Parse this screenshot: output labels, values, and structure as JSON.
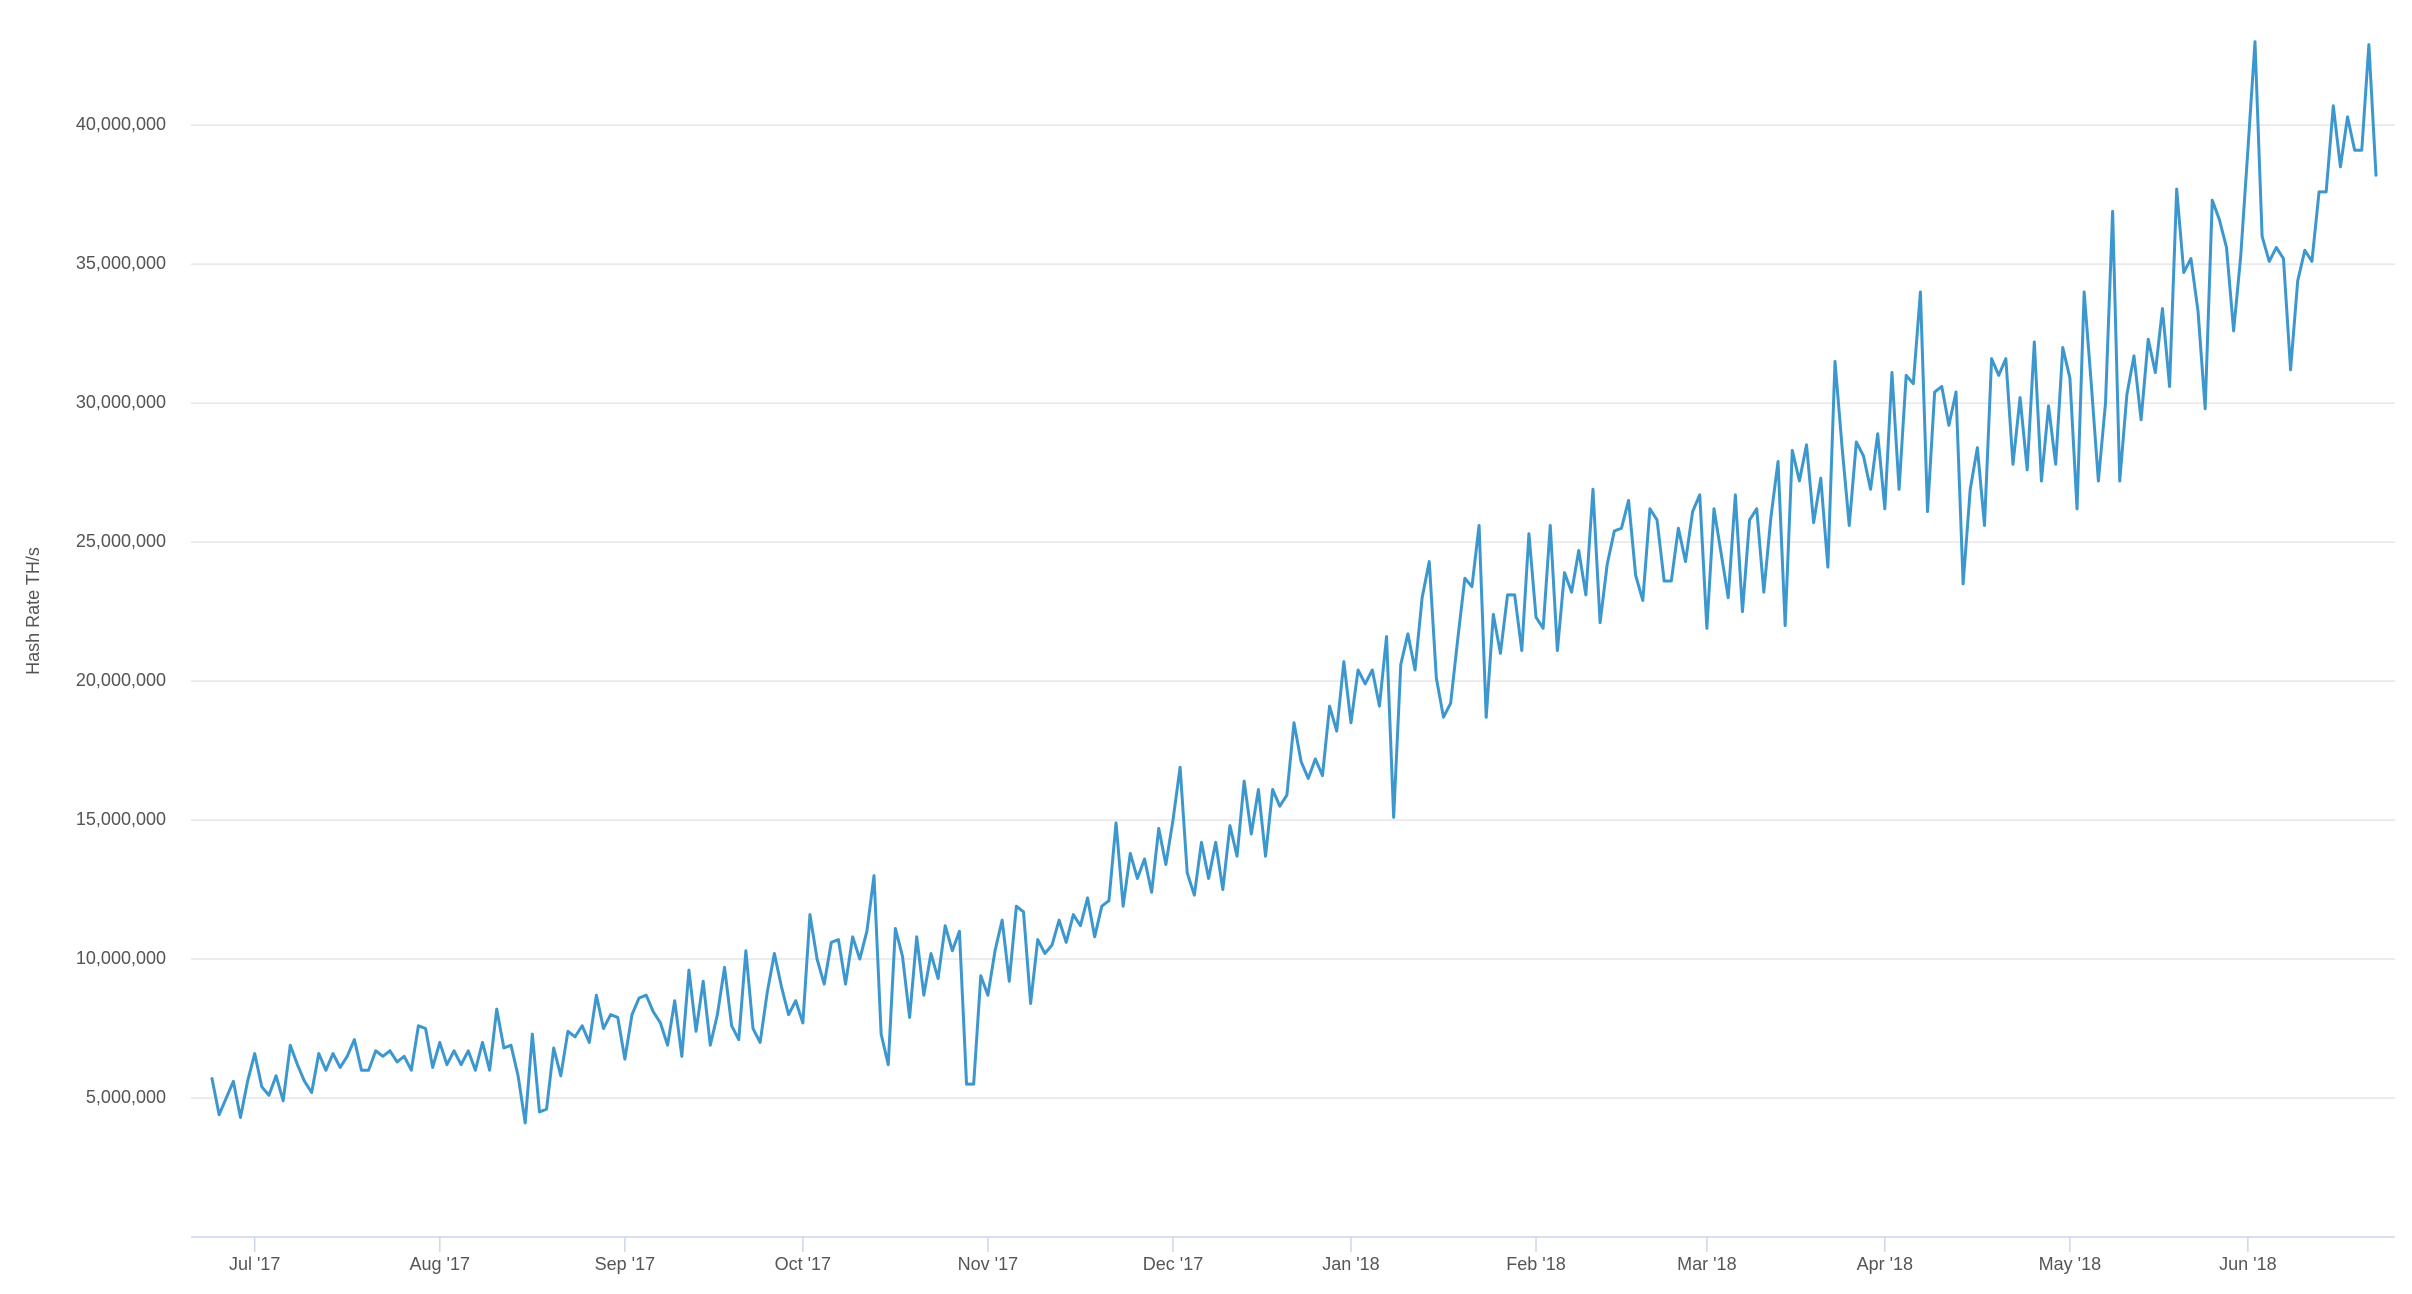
{
  "chart_data": {
    "type": "line",
    "y_label": "Hash Rate TH/s",
    "categories": [
      null,
      null,
      null,
      null,
      null,
      null,
      "Jul '17",
      null,
      null,
      null,
      null,
      null,
      null,
      null,
      null,
      null,
      null,
      null,
      null,
      null,
      null,
      null,
      null,
      null,
      null,
      null,
      null,
      null,
      null,
      null,
      null,
      null,
      "Aug '17",
      null,
      null,
      null,
      null,
      null,
      null,
      null,
      null,
      null,
      null,
      null,
      null,
      null,
      null,
      null,
      null,
      null,
      null,
      null,
      null,
      null,
      null,
      null,
      null,
      null,
      "Sep '17",
      null,
      null,
      null,
      null,
      null,
      null,
      null,
      null,
      null,
      null,
      null,
      null,
      null,
      null,
      null,
      null,
      null,
      null,
      null,
      null,
      null,
      null,
      null,
      null,
      "Oct '17",
      null,
      null,
      null,
      null,
      null,
      null,
      null,
      null,
      null,
      null,
      null,
      null,
      null,
      null,
      null,
      null,
      null,
      null,
      null,
      null,
      null,
      null,
      null,
      null,
      null,
      "Nov '17",
      null,
      null,
      null,
      null,
      null,
      null,
      null,
      null,
      null,
      null,
      null,
      null,
      null,
      null,
      null,
      null,
      null,
      null,
      null,
      null,
      null,
      null,
      null,
      null,
      null,
      "Dec '17",
      null,
      null,
      null,
      null,
      null,
      null,
      null,
      null,
      null,
      null,
      null,
      null,
      null,
      null,
      null,
      null,
      null,
      null,
      null,
      null,
      null,
      null,
      null,
      null,
      "Jan '18",
      null,
      null,
      null,
      null,
      null,
      null,
      null,
      null,
      null,
      null,
      null,
      null,
      null,
      null,
      null,
      null,
      null,
      null,
      null,
      null,
      null,
      null,
      null,
      null,
      null,
      "Feb '18",
      null,
      null,
      null,
      null,
      null,
      null,
      null,
      null,
      null,
      null,
      null,
      null,
      null,
      null,
      null,
      null,
      null,
      null,
      null,
      null,
      null,
      null,
      null,
      "Mar '18",
      null,
      null,
      null,
      null,
      null,
      null,
      null,
      null,
      null,
      null,
      null,
      null,
      null,
      null,
      null,
      null,
      null,
      null,
      null,
      null,
      null,
      null,
      null,
      null,
      "Apr '18",
      null,
      null,
      null,
      null,
      null,
      null,
      null,
      null,
      null,
      null,
      null,
      null,
      null,
      null,
      null,
      null,
      null,
      null,
      null,
      null,
      null,
      null,
      null,
      null,
      null,
      "May '18",
      null,
      null,
      null,
      null,
      null,
      null,
      null,
      null,
      null,
      null,
      null,
      null,
      null,
      null,
      null,
      null,
      null,
      null,
      null,
      null,
      null,
      null,
      null,
      null,
      "Jun '18",
      null,
      null,
      null,
      null,
      null,
      null,
      null,
      null,
      null,
      null,
      null,
      null,
      null,
      null,
      null,
      null,
      null,
      null
    ],
    "values": [
      5700000.0,
      4400000.0,
      5000000.0,
      5600000.0,
      4300000.0,
      5600000.0,
      6600000.0,
      5400000.0,
      5100000.0,
      5800000.0,
      4900000.0,
      6900000.0,
      6200000.0,
      5600000.0,
      5200000.0,
      6600000.0,
      6000000.0,
      6600000.0,
      6100000.0,
      6500000.0,
      7100000.0,
      6000000.0,
      6000000.0,
      6700000.0,
      6500000.0,
      6700000.0,
      6300000.0,
      6500000.0,
      6000000.0,
      7600000.0,
      7500000.0,
      6100000.0,
      7000000.0,
      6200000.0,
      6700000.0,
      6200000.0,
      6700000.0,
      6000000.0,
      7000000.0,
      6000000.0,
      8200000.0,
      6800000.0,
      6900000.0,
      5800000.0,
      4100000.0,
      7300000.0,
      4500000.0,
      4600000.0,
      6800000.0,
      5800000.0,
      7400000.0,
      7200000.0,
      7600000.0,
      7000000.0,
      8700000.0,
      7500000.0,
      8000000.0,
      7900000.0,
      6400000.0,
      8000000.0,
      8600000.0,
      8700000.0,
      8100000.0,
      7700000.0,
      6900000.0,
      8500000.0,
      6500000.0,
      9600000.0,
      7400000.0,
      9200000.0,
      6900000.0,
      8000000.0,
      9700000.0,
      7600000.0,
      7100000.0,
      10300000.0,
      7500000.0,
      7000000.0,
      8800000.0,
      10200000.0,
      9000000.0,
      8000000.0,
      8500000.0,
      7700000.0,
      11600000.0,
      10000000.0,
      9100000.0,
      10600000.0,
      10700000.0,
      9100000.0,
      10800000.0,
      10000000.0,
      11000000.0,
      13000000.0,
      7300000.0,
      6200000.0,
      11100000.0,
      10100000.0,
      7900000.0,
      10800000.0,
      8700000.0,
      10200000.0,
      9300000.0,
      11200000.0,
      10300000.0,
      11000000.0,
      5500000.0,
      5500000.0,
      9400000.0,
      8700000.0,
      10300000.0,
      11400000.0,
      9200000.0,
      11900000.0,
      11700000.0,
      8400000.0,
      10700000.0,
      10200000.0,
      10500000.0,
      11400000.0,
      10600000.0,
      11600000.0,
      11200000.0,
      12200000.0,
      10800000.0,
      11900000.0,
      12100000.0,
      14900000.0,
      11900000.0,
      13800000.0,
      12900000.0,
      13600000.0,
      12400000.0,
      14700000.0,
      13400000.0,
      15000000.0,
      16900000.0,
      13100000.0,
      12300000.0,
      14200000.0,
      12900000.0,
      14200000.0,
      12500000.0,
      14800000.0,
      13700000.0,
      16400000.0,
      14500000.0,
      16100000.0,
      13700000.0,
      16100000.0,
      15500000.0,
      15900000.0,
      18500000.0,
      17100000.0,
      16500000.0,
      17200000.0,
      16600000.0,
      19100000.0,
      18200000.0,
      20700000.0,
      18500000.0,
      20400000.0,
      19900000.0,
      20400000.0,
      19100000.0,
      21600000.0,
      15100000.0,
      20600000.0,
      21700000.0,
      20400000.0,
      23000000.0,
      24300000.0,
      20100000.0,
      18700000.0,
      19200000.0,
      21500000.0,
      23700000.0,
      23400000.0,
      25600000.0,
      18700000.0,
      22400000.0,
      21000000.0,
      23100000.0,
      23100000.0,
      21100000.0,
      25300000.0,
      22300000.0,
      21900000.0,
      25600000.0,
      21100000.0,
      23900000.0,
      23200000.0,
      24700000.0,
      23100000.0,
      26900000.0,
      22100000.0,
      24200000.0,
      25400000.0,
      25500000.0,
      26500000.0,
      23800000.0,
      22900000.0,
      26200000.0,
      25800000.0,
      23600000.0,
      23600000.0,
      25500000.0,
      24300000.0,
      26100000.0,
      26700000.0,
      21900000.0,
      26200000.0,
      24600000.0,
      23000000.0,
      26700000.0,
      22500000.0,
      25800000.0,
      26200000.0,
      23200000.0,
      25900000.0,
      27900000.0,
      22000000.0,
      28300000.0,
      27200000.0,
      28500000.0,
      25700000.0,
      27300000.0,
      24100000.0,
      31500000.0,
      28400000.0,
      25600000.0,
      28600000.0,
      28100000.0,
      26900000.0,
      28900000.0,
      26200000.0,
      31100000.0,
      26900000.0,
      31000000.0,
      30700000.0,
      34000000.0,
      26100000.0,
      30400000.0,
      30600000.0,
      29200000.0,
      30400000.0,
      23500000.0,
      26900000.0,
      28400000.0,
      25600000.0,
      31600000.0,
      31000000.0,
      31600000.0,
      27800000.0,
      30200000.0,
      27600000.0,
      32200000.0,
      27200000.0,
      29900000.0,
      27800000.0,
      32000000.0,
      30900000.0,
      26200000.0,
      34000000.0,
      30700000.0,
      27200000.0,
      30000000.0,
      36900000.0,
      27200000.0,
      30300000.0,
      31700000.0,
      29400000.0,
      32300000.0,
      31100000.0,
      33400000.0,
      30600000.0,
      37700000.0,
      34700000.0,
      35200000.0,
      33300000.0,
      29800000.0,
      37300000.0,
      36600000.0,
      35600000.0,
      32600000.0,
      35300000.0,
      39100000.0,
      43000000.0,
      36000000.0,
      35100000.0,
      35600000.0,
      35200000.0,
      31200000.0,
      34400000.0,
      35500000.0,
      35100000.0,
      37600000.0,
      37600000.0,
      40700000.0,
      38500000.0,
      40300000.0,
      39100000.0,
      39100000.0,
      42900000.0,
      38200000.0
    ],
    "color": "#3d97cf",
    "ylim": [
      0,
      44000000
    ],
    "yticks": [
      {
        "value": 5000000,
        "label": "5,000,000"
      },
      {
        "value": 10000000,
        "label": "10,000,000"
      },
      {
        "value": 15000000,
        "label": "15,000,000"
      },
      {
        "value": 20000000,
        "label": "20,000,000"
      },
      {
        "value": 25000000,
        "label": "25,000,000"
      },
      {
        "value": 30000000,
        "label": "30,000,000"
      },
      {
        "value": 35000000,
        "label": "35,000,000"
      },
      {
        "value": 40000000,
        "label": "40,000,000"
      }
    ],
    "grid": true
  }
}
